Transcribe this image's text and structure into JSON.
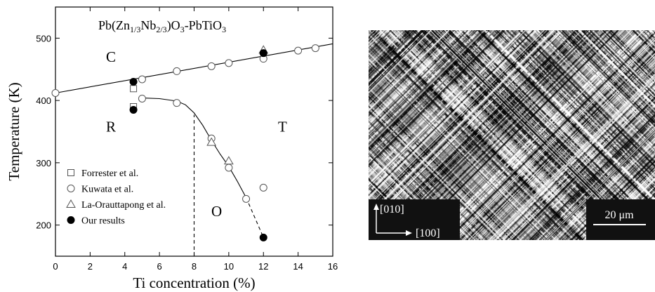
{
  "chart_data": {
    "type": "scatter",
    "title_parts": [
      "Pb(Zn",
      "1/3",
      "Nb",
      "2/3",
      ")O",
      "3",
      "-PbTiO",
      "3"
    ],
    "x_label": "Ti concentration (%)",
    "y_label": "Temperature (K)",
    "xlim": [
      0,
      16
    ],
    "xticks": [
      0,
      2,
      4,
      6,
      8,
      10,
      12,
      14,
      16
    ],
    "ylim": [
      150,
      550
    ],
    "yticks": [
      200,
      300,
      400,
      500
    ],
    "legend": "lower left",
    "series": [
      {
        "name": "Forrester et al.",
        "marker": "square",
        "color": "#000",
        "x": [
          4.5,
          4.5
        ],
        "values": [
          419,
          390
        ]
      },
      {
        "name": "Kuwata et al.",
        "marker": "circle",
        "color": "#000",
        "x": [
          0,
          5,
          7,
          9,
          10,
          12,
          14,
          15,
          5,
          7,
          9,
          10,
          11,
          12
        ],
        "values": [
          412,
          434,
          447,
          455,
          460,
          467,
          480,
          484,
          403,
          396,
          339,
          292,
          242,
          260
        ]
      },
      {
        "name": "La-Orauttapong et al.",
        "marker": "triangle",
        "color": "#000",
        "x": [
          9,
          10,
          12
        ],
        "values": [
          333,
          303,
          481
        ]
      },
      {
        "name": "Our results",
        "marker": "filled-circle",
        "color": "#000",
        "x": [
          4.5,
          4.5,
          12,
          12
        ],
        "values": [
          430,
          385,
          476,
          180
        ]
      }
    ],
    "lines": [
      {
        "dash": false,
        "x": [
          0,
          16
        ],
        "values": [
          412,
          491
        ]
      },
      {
        "dash": false,
        "x": [
          5,
          6,
          7,
          7.5,
          8,
          8.5,
          9,
          9.5,
          10,
          10.5,
          11
        ],
        "values": [
          404,
          403,
          399,
          393,
          380,
          360,
          336,
          314,
          294,
          270,
          244
        ]
      },
      {
        "dash": true,
        "x": [
          11,
          12
        ],
        "values": [
          244,
          180
        ]
      },
      {
        "dash": true,
        "x": [
          8,
          8
        ],
        "values": [
          150,
          377
        ]
      }
    ],
    "phase_labels": [
      "C",
      "R",
      "T",
      "O"
    ]
  },
  "image": {
    "axis_labels": [
      "[010]",
      "[100]"
    ],
    "scale_bar": "20 μm"
  }
}
